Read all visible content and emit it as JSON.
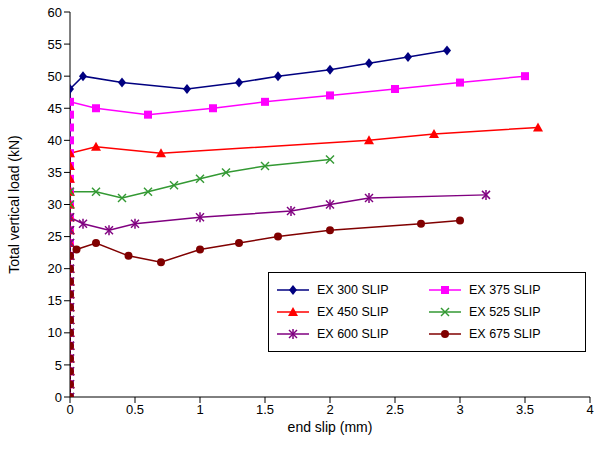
{
  "chart_data": {
    "type": "line",
    "x_label": "end slip (mm)",
    "y_label": "Total vertical load (kN)",
    "xlim": [
      0,
      4
    ],
    "xticks": [
      0,
      0.5,
      1,
      1.5,
      2,
      2.5,
      3,
      3.5,
      4
    ],
    "ylim": [
      0,
      60
    ],
    "yticks": [
      0,
      5,
      10,
      15,
      20,
      25,
      30,
      35,
      40,
      45,
      50,
      55,
      60
    ],
    "grid": false,
    "legend": "lower right",
    "series": [
      {
        "name": "EX 300 SLIP",
        "color": "#000080",
        "marker": "diamond",
        "line_style": "solid",
        "x": [
          0,
          0,
          0,
          0,
          0,
          0,
          0,
          0,
          0,
          0,
          0,
          0,
          0,
          0,
          0,
          0,
          0,
          0,
          0,
          0,
          0,
          0,
          0,
          0,
          0,
          0.1,
          0.4,
          0.9,
          1.3,
          1.6,
          2,
          2.3,
          2.6,
          2.9
        ],
        "values": [
          0,
          2,
          4,
          6,
          8,
          10,
          12,
          14,
          16,
          18,
          20,
          22,
          24,
          26,
          28,
          30,
          32,
          34,
          36,
          38,
          40,
          42,
          44,
          46,
          48,
          50,
          49,
          48,
          49,
          50,
          51,
          52,
          53,
          54
        ]
      },
      {
        "name": "EX 375 SLIP",
        "color": "#ff00ff",
        "marker": "square",
        "line_style": "solid",
        "x": [
          0,
          0,
          0,
          0,
          0,
          0,
          0,
          0,
          0,
          0,
          0,
          0,
          0,
          0,
          0,
          0,
          0,
          0,
          0,
          0,
          0,
          0,
          0,
          0,
          0.2,
          0.6,
          1.1,
          1.5,
          2,
          2.5,
          3,
          3.5
        ],
        "values": [
          0,
          2,
          4,
          6,
          8,
          10,
          12,
          14,
          16,
          18,
          20,
          22,
          24,
          26,
          28,
          30,
          32,
          34,
          36,
          38,
          40,
          42,
          44,
          46,
          45,
          44,
          45,
          46,
          47,
          48,
          49,
          50
        ]
      },
      {
        "name": "EX 450 SLIP",
        "color": "#ff0000",
        "marker": "triangle",
        "line_style": "solid",
        "x": [
          0,
          0,
          0,
          0,
          0,
          0,
          0,
          0,
          0,
          0,
          0,
          0,
          0,
          0,
          0,
          0,
          0,
          0,
          0,
          0,
          0.2,
          0.7,
          2.3,
          2.8,
          3.6
        ],
        "values": [
          0,
          2,
          4,
          6,
          8,
          10,
          12,
          14,
          16,
          18,
          20,
          22,
          24,
          26,
          28,
          30,
          32,
          34,
          36,
          38,
          39,
          38,
          40,
          41,
          42
        ]
      },
      {
        "name": "EX 525 SLIP",
        "color": "#339933",
        "marker": "x",
        "line_style": "solid",
        "x": [
          0,
          0,
          0,
          0,
          0,
          0,
          0,
          0,
          0,
          0,
          0,
          0,
          0,
          0,
          0,
          0,
          0,
          0.2,
          0.4,
          0.6,
          0.8,
          1,
          1.2,
          1.5,
          2
        ],
        "values": [
          0,
          2,
          4,
          6,
          8,
          10,
          12,
          14,
          16,
          18,
          20,
          22,
          24,
          26,
          28,
          30,
          32,
          32,
          31,
          32,
          33,
          34,
          35,
          36,
          37
        ]
      },
      {
        "name": "EX 600 SLIP",
        "color": "#800080",
        "marker": "star",
        "line_style": "solid",
        "x": [
          0,
          0,
          0,
          0,
          0,
          0,
          0,
          0,
          0,
          0,
          0,
          0,
          0,
          0,
          0,
          0.1,
          0.3,
          0.5,
          1,
          1.7,
          2,
          2.3,
          3.2
        ],
        "values": [
          0,
          2,
          4,
          6,
          8,
          10,
          12,
          14,
          16,
          18,
          20,
          22,
          24,
          26,
          28,
          27,
          26,
          27,
          28,
          29,
          30,
          31,
          31.5
        ]
      },
      {
        "name": "EX 675 SLIP",
        "color": "#800000",
        "marker": "circle",
        "line_style": "solid",
        "x": [
          0,
          0,
          0,
          0,
          0,
          0,
          0,
          0,
          0,
          0,
          0,
          0,
          0.05,
          0.2,
          0.45,
          0.7,
          1,
          1.3,
          1.6,
          2,
          2.7,
          3
        ],
        "values": [
          0,
          2,
          4,
          6,
          8,
          10,
          12,
          14,
          16,
          18,
          20,
          22,
          23,
          24,
          22,
          21,
          23,
          24,
          25,
          26,
          27,
          27.5
        ]
      }
    ]
  }
}
